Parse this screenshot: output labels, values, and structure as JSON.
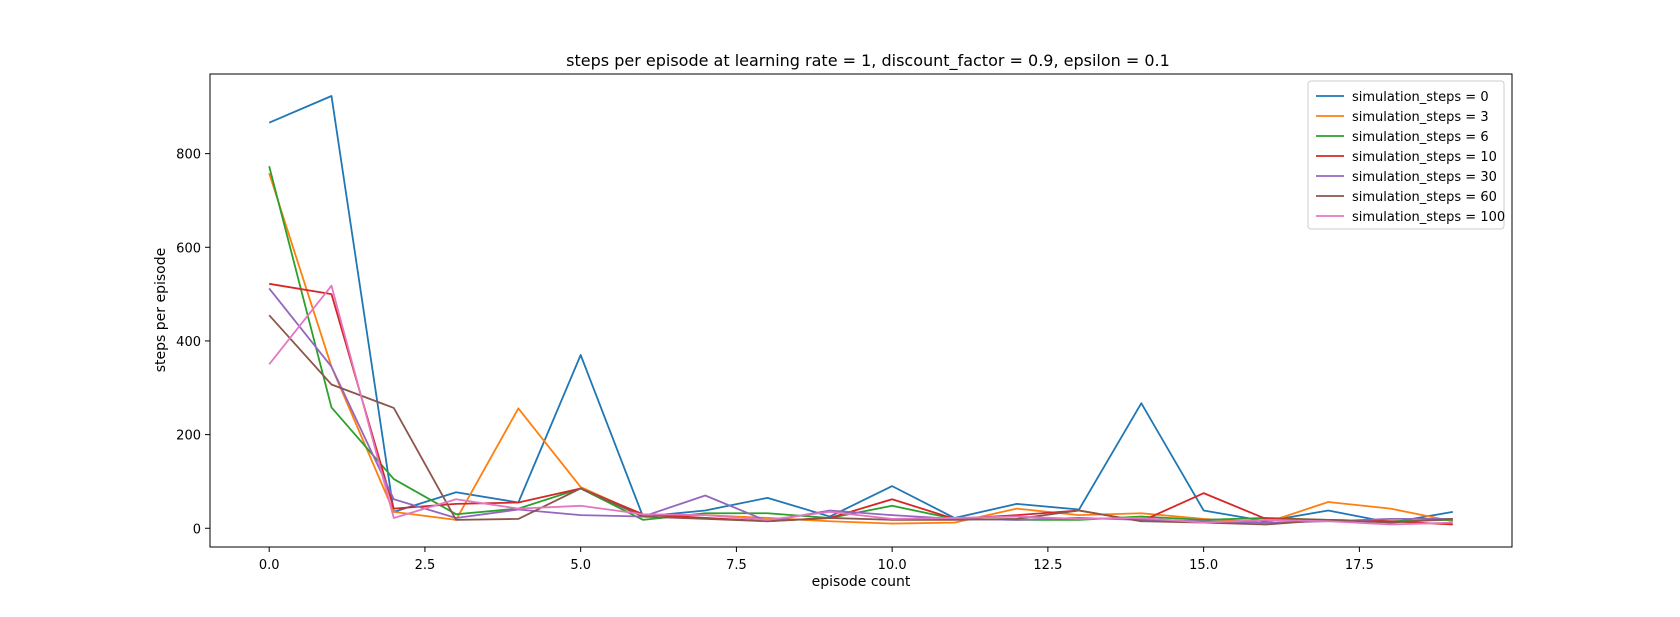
{
  "chart_data": {
    "type": "line",
    "title": "steps per episode at learning rate = 1, discount_factor = 0.9, epsilon = 0.1",
    "xlabel": "episode count",
    "ylabel": "steps per episode",
    "xlim": [
      -0.95,
      19.95
    ],
    "ylim": [
      -40,
      970
    ],
    "xticks": [
      0.0,
      2.5,
      5.0,
      7.5,
      10.0,
      12.5,
      15.0,
      17.5
    ],
    "xtick_labels": [
      "0.0",
      "2.5",
      "5.0",
      "7.5",
      "10.0",
      "12.5",
      "15.0",
      "17.5"
    ],
    "yticks": [
      0,
      200,
      400,
      600,
      800
    ],
    "ytick_labels": [
      "0",
      "200",
      "400",
      "600",
      "800"
    ],
    "grid": false,
    "legend_position": "top-right",
    "x": [
      0,
      1,
      2,
      3,
      4,
      5,
      6,
      7,
      8,
      9,
      10,
      11,
      12,
      13,
      14,
      15,
      16,
      17,
      18,
      19
    ],
    "series": [
      {
        "name": "simulation_steps = 0",
        "color": "#1f77b4",
        "values": [
          866,
          923,
          35,
          77,
          55,
          370,
          25,
          38,
          65,
          25,
          90,
          22,
          52,
          40,
          267,
          38,
          15,
          38,
          12,
          35
        ]
      },
      {
        "name": "simulation_steps = 3",
        "color": "#ff7f0e",
        "values": [
          758,
          345,
          35,
          18,
          256,
          88,
          28,
          28,
          22,
          15,
          10,
          12,
          42,
          28,
          32,
          20,
          12,
          56,
          42,
          15
        ]
      },
      {
        "name": "simulation_steps = 6",
        "color": "#2ca02c",
        "values": [
          773,
          258,
          105,
          30,
          42,
          85,
          18,
          32,
          32,
          22,
          48,
          20,
          18,
          18,
          25,
          18,
          22,
          18,
          15,
          18
        ]
      },
      {
        "name": "simulation_steps = 10",
        "color": "#d62728",
        "values": [
          522,
          500,
          42,
          52,
          55,
          85,
          30,
          22,
          15,
          22,
          62,
          20,
          28,
          38,
          15,
          75,
          20,
          18,
          15,
          8
        ]
      },
      {
        "name": "simulation_steps = 30",
        "color": "#9467bd",
        "values": [
          512,
          345,
          62,
          22,
          40,
          28,
          25,
          70,
          15,
          38,
          28,
          20,
          18,
          22,
          18,
          15,
          12,
          15,
          20,
          20
        ]
      },
      {
        "name": "simulation_steps = 60",
        "color": "#8c564b",
        "values": [
          455,
          307,
          257,
          18,
          20,
          85,
          25,
          20,
          15,
          22,
          18,
          18,
          20,
          38,
          15,
          12,
          8,
          18,
          12,
          20
        ]
      },
      {
        "name": "simulation_steps = 100",
        "color": "#e377c2",
        "values": [
          350,
          518,
          22,
          62,
          42,
          48,
          30,
          28,
          18,
          35,
          20,
          22,
          25,
          20,
          22,
          12,
          18,
          15,
          8,
          12
        ]
      }
    ]
  }
}
